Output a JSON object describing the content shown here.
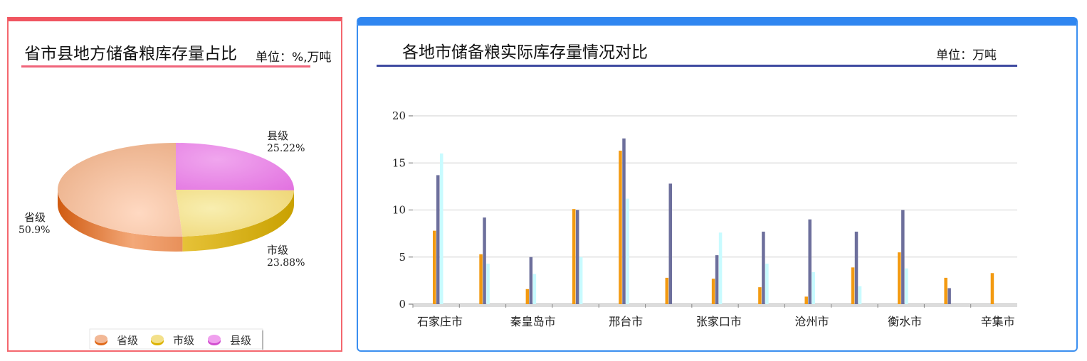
{
  "left_panel": {
    "title": "省市县地方储备粮库存量占比",
    "unit": "单位：%,万吨",
    "legend": [
      "省级",
      "市级",
      "县级"
    ]
  },
  "right_panel": {
    "title": "各地市储备粮实际库存量情况对比",
    "unit": "单位：万吨"
  },
  "colors": {
    "accent_left": "#f05560",
    "accent_right": "#2f86f0",
    "title_rule_left": "#f0647a",
    "title_rule_right": "#3e4aa0",
    "slice_province": "#f2b896",
    "slice_city": "#f2e08c",
    "slice_county": "#ea82e8",
    "bar_orange": "#f39a11",
    "bar_purple": "#6d6f9c",
    "bar_cyan": "#c8fbff"
  },
  "chart_data": [
    {
      "type": "pie",
      "title": "省市县地方储备粮库存量占比",
      "slices": [
        {
          "label": "省级",
          "value": 50.9,
          "text": "50.9%"
        },
        {
          "label": "市级",
          "value": 23.88,
          "text": "23.88%"
        },
        {
          "label": "县级",
          "value": 25.22,
          "text": "25.22%"
        }
      ],
      "legend_placement": "bottom"
    },
    {
      "type": "bar",
      "title": "各地市储备粮实际库存量情况对比",
      "categories": [
        "石家庄市",
        "",
        "秦皇岛市",
        "",
        "邢台市",
        "",
        "张家口市",
        "",
        "沧州市",
        "",
        "衡水市",
        "",
        "辛集市"
      ],
      "series": [
        {
          "values": [
            7.8,
            5.3,
            1.6,
            10.1,
            16.3,
            2.8,
            2.7,
            1.8,
            0.8,
            3.9,
            5.5,
            2.8,
            3.3
          ]
        },
        {
          "values": [
            13.7,
            9.2,
            5.0,
            10.0,
            17.6,
            12.8,
            5.2,
            7.7,
            9.0,
            7.7,
            10.0,
            1.7,
            0
          ]
        },
        {
          "values": [
            16.0,
            4.3,
            3.2,
            5.0,
            11.2,
            0,
            7.6,
            4.3,
            3.4,
            1.9,
            3.8,
            0,
            0
          ]
        }
      ],
      "ylim": [
        0,
        20
      ],
      "yticks": [
        "0",
        "5",
        "10",
        "15",
        "20"
      ],
      "grid": true
    }
  ]
}
